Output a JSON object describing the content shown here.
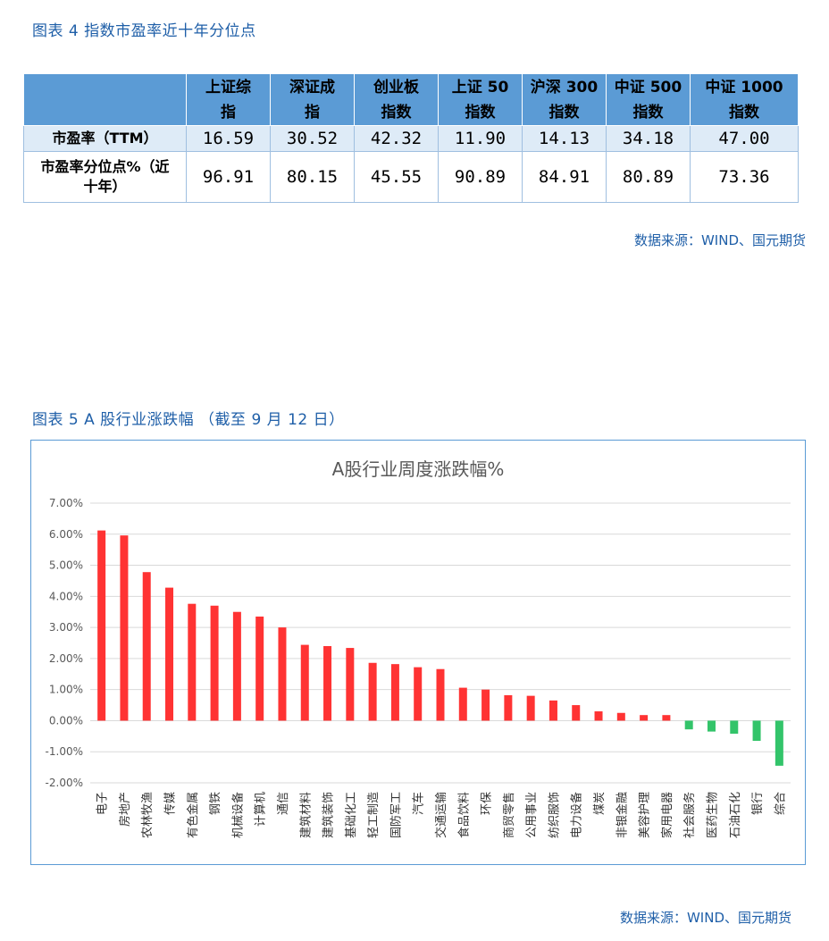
{
  "figure4": {
    "caption": "图表 4 指数市盈率近十年分位点",
    "columns": [
      "上证综指",
      "深证成指",
      "创业板指数",
      "上证 50指数",
      "沪深 300指数",
      "中证 500指数",
      "中证 1000指数"
    ],
    "column_lines": [
      [
        "上证综",
        "指"
      ],
      [
        "深证成",
        "指"
      ],
      [
        "创业板",
        "指数"
      ],
      [
        "上证 50",
        "指数"
      ],
      [
        "沪深 300",
        "指数"
      ],
      [
        "中证 500",
        "指数"
      ],
      [
        "中证 1000",
        "指数"
      ]
    ],
    "rows": [
      {
        "label": "市盈率（TTM）",
        "values": [
          "16.59",
          "30.52",
          "42.32",
          "11.90",
          "14.13",
          "34.18",
          "47.00"
        ]
      },
      {
        "label_lines": [
          "市盈率分位点%（近",
          "十年）"
        ],
        "values": [
          "96.91",
          "80.15",
          "45.55",
          "90.89",
          "84.91",
          "80.89",
          "73.36"
        ]
      }
    ],
    "source": "数据来源：WIND、国元期货"
  },
  "figure5": {
    "caption": "图表 5 A 股行业涨跌幅 （截至 9 月 12 日）",
    "source": "数据来源：WIND、国元期货"
  },
  "colors": {
    "positive": "#ff3333",
    "negative": "#33c46a",
    "caption": "#1f5fa8",
    "header": "#5b9bd5",
    "row_shade": "#deebf7"
  },
  "chart_data": {
    "type": "bar",
    "title": "A股行业周度涨跌幅%",
    "xlabel": "",
    "ylabel": "",
    "ylim": [
      -2,
      7
    ],
    "yticks": [
      "7.00%",
      "6.00%",
      "5.00%",
      "4.00%",
      "3.00%",
      "2.00%",
      "1.00%",
      "0.00%",
      "-1.00%",
      "-2.00%"
    ],
    "grid": true,
    "legend": "none",
    "categories": [
      "电子",
      "房地产",
      "农林牧渔",
      "传媒",
      "有色金属",
      "钢铁",
      "机械设备",
      "计算机",
      "通信",
      "建筑材料",
      "建筑装饰",
      "基础化工",
      "轻工制造",
      "国防军工",
      "汽车",
      "交通运输",
      "食品饮料",
      "环保",
      "商贸零售",
      "公用事业",
      "纺织服饰",
      "电力设备",
      "煤炭",
      "非银金融",
      "美容护理",
      "家用电器",
      "社会服务",
      "医药生物",
      "石油石化",
      "银行",
      "综合"
    ],
    "values": [
      6.12,
      5.96,
      4.78,
      4.28,
      3.76,
      3.7,
      3.5,
      3.35,
      3.0,
      2.44,
      2.4,
      2.34,
      1.86,
      1.82,
      1.72,
      1.66,
      1.06,
      1.0,
      0.82,
      0.8,
      0.65,
      0.5,
      0.3,
      0.25,
      0.18,
      0.18,
      -0.28,
      -0.35,
      -0.42,
      -0.65,
      -1.45
    ]
  }
}
